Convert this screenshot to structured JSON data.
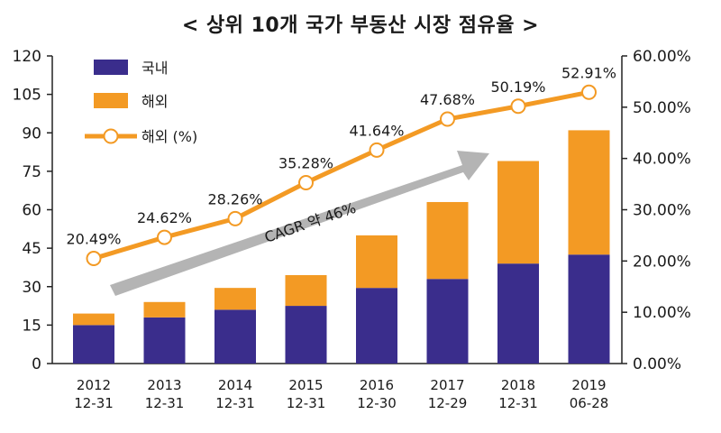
{
  "chart_data": {
    "type": "bar",
    "title": "< 상위 10개 국가 부동산 시장 점유율 >",
    "categories": [
      [
        "2012",
        "12-31"
      ],
      [
        "2013",
        "12-31"
      ],
      [
        "2014",
        "12-31"
      ],
      [
        "2015",
        "12-31"
      ],
      [
        "2016",
        "12-30"
      ],
      [
        "2017",
        "12-29"
      ],
      [
        "2018",
        "12-31"
      ],
      [
        "2019",
        "06-28"
      ]
    ],
    "stacked": true,
    "series": [
      {
        "name": "국내",
        "axis": "left",
        "color": "#3a2d8c",
        "values": [
          15,
          18,
          21,
          22.5,
          29.5,
          33,
          39,
          42.5
        ]
      },
      {
        "name": "해외",
        "axis": "left",
        "color": "#f39a24",
        "values": [
          4.5,
          6,
          8.5,
          12,
          20.5,
          30,
          40,
          48.5
        ]
      },
      {
        "name": "해외 (%)",
        "type": "line",
        "axis": "right",
        "color": "#f39a24",
        "values": [
          20.49,
          24.62,
          28.26,
          35.28,
          41.64,
          47.68,
          50.19,
          52.91
        ],
        "labels": [
          "20.49%",
          "24.62%",
          "28.26%",
          "35.28%",
          "41.64%",
          "47.68%",
          "50.19%",
          "52.91%"
        ]
      }
    ],
    "y_left": {
      "ylim": [
        0,
        120
      ],
      "ticks": [
        "0",
        "15",
        "30",
        "45",
        "60",
        "75",
        "90",
        "105",
        "120"
      ]
    },
    "y_right": {
      "ylim": [
        0,
        60
      ],
      "ticks": [
        "0.00%",
        "10.00%",
        "20.00%",
        "30.00%",
        "40.00%",
        "50.00%",
        "60.00%"
      ]
    },
    "annotation": "CAGR 약 46%",
    "legend": {
      "placement": "top-left"
    },
    "grid": false
  }
}
